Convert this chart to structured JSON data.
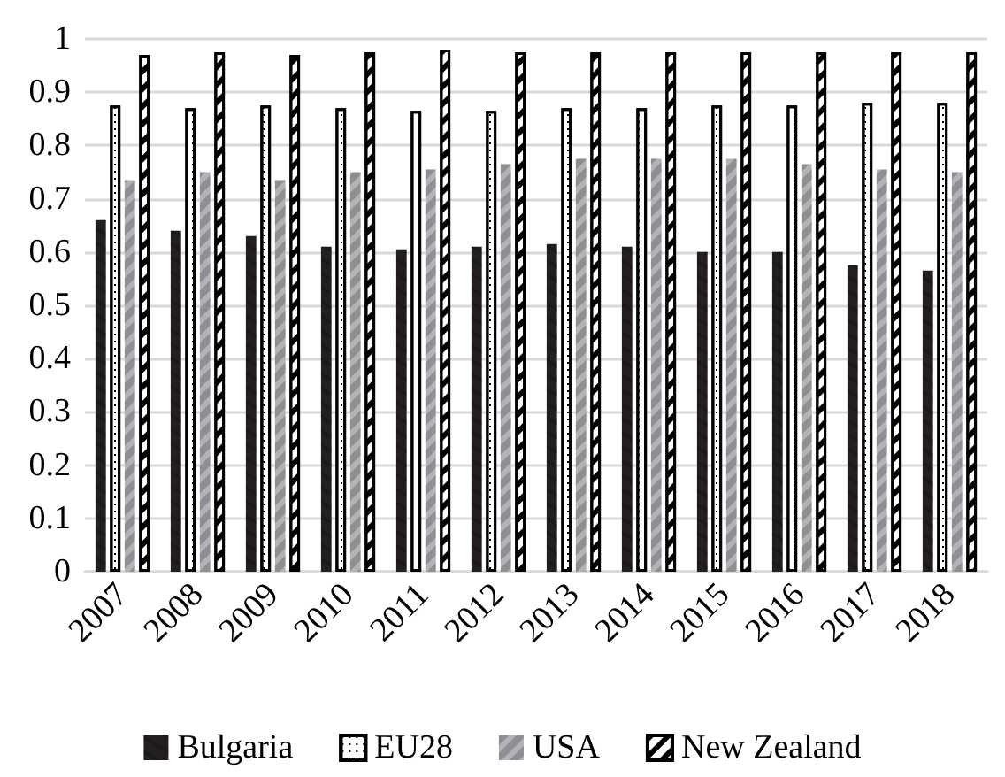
{
  "chart_data": {
    "type": "bar",
    "categories": [
      "2007",
      "2008",
      "2009",
      "2010",
      "2011",
      "2012",
      "2013",
      "2014",
      "2015",
      "2016",
      "2017",
      "2018"
    ],
    "series": [
      {
        "name": "Bulgaria",
        "color": "#231f20",
        "values": [
          0.66,
          0.64,
          0.63,
          0.61,
          0.605,
          0.61,
          0.615,
          0.61,
          0.6,
          0.6,
          0.575,
          0.565
        ]
      },
      {
        "name": "EU28",
        "color": "#ffffff",
        "values": [
          0.875,
          0.87,
          0.875,
          0.87,
          0.865,
          0.865,
          0.87,
          0.87,
          0.875,
          0.875,
          0.88,
          0.88
        ]
      },
      {
        "name": "USA",
        "color": "#b1b3b6",
        "values": [
          0.735,
          0.75,
          0.735,
          0.75,
          0.755,
          0.765,
          0.775,
          0.775,
          0.775,
          0.765,
          0.755,
          0.75
        ]
      },
      {
        "name": "New Zealand",
        "color": "#ffffff",
        "values": [
          0.97,
          0.975,
          0.97,
          0.975,
          0.98,
          0.975,
          0.975,
          0.975,
          0.975,
          0.975,
          0.975,
          0.975
        ]
      }
    ],
    "ylim": [
      0,
      1
    ],
    "yticks": [
      0,
      0.1,
      0.2,
      0.3,
      0.4,
      0.5,
      0.6,
      0.7,
      0.8,
      0.9,
      1
    ],
    "grid": "y",
    "legend": "bottom"
  }
}
